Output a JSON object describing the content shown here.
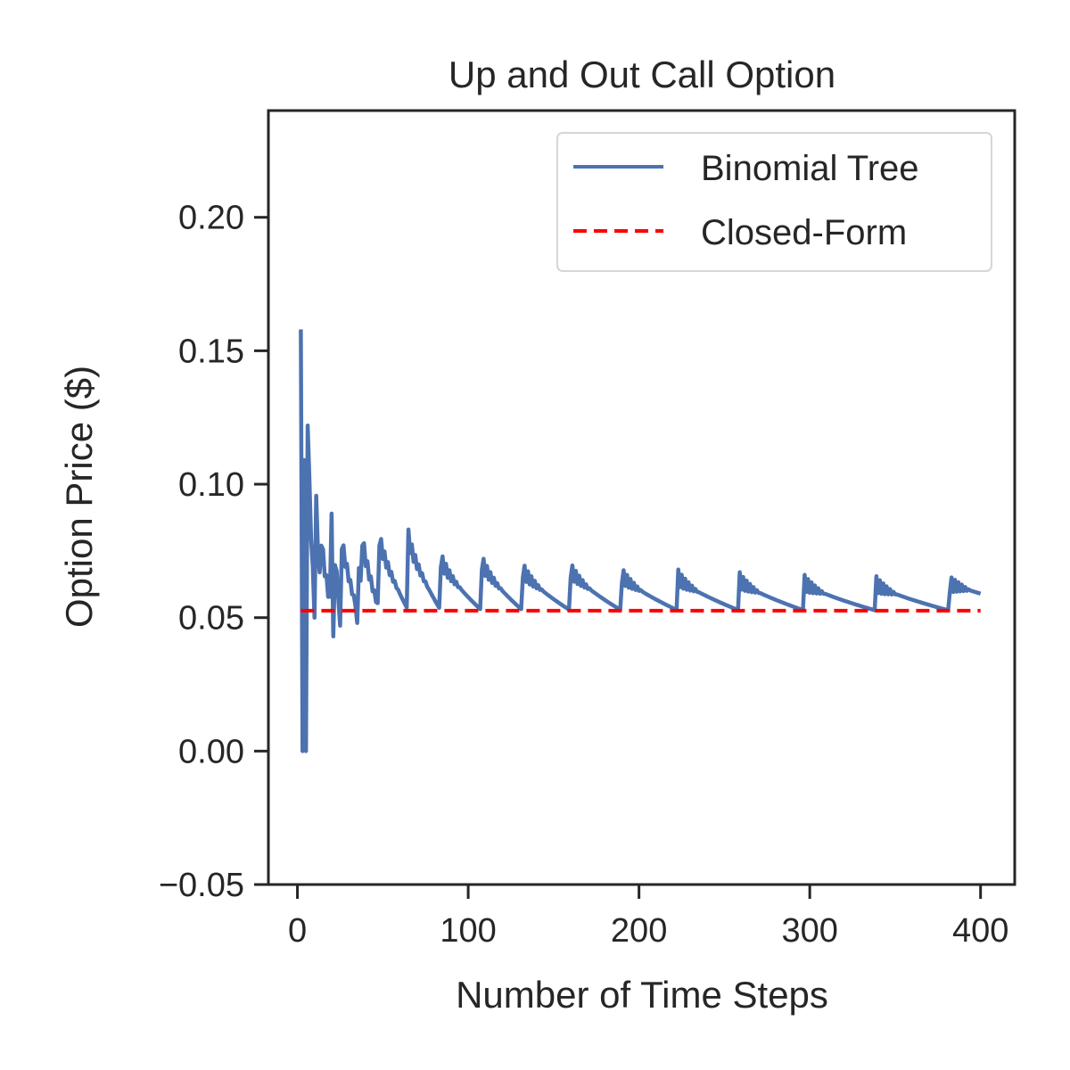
{
  "chart_data": {
    "type": "line",
    "title": "Up and Out Call Option",
    "xlabel": "Number of Time Steps",
    "ylabel": "Option Price ($)",
    "xlim": [
      -17,
      420
    ],
    "ylim": [
      -0.05,
      0.24
    ],
    "xticks": [
      0,
      100,
      200,
      300,
      400
    ],
    "xtick_labels": [
      "0",
      "100",
      "200",
      "300",
      "400"
    ],
    "yticks": [
      -0.05,
      0.0,
      0.05,
      0.1,
      0.15,
      0.2
    ],
    "ytick_labels": [
      "−0.05",
      "0.00",
      "0.05",
      "0.10",
      "0.15",
      "0.20"
    ],
    "grid": false,
    "legend_position": "top-right",
    "series": [
      {
        "name": "Binomial Tree",
        "color": "#4c72b0",
        "style": "solid",
        "reset_steps": [
          3,
          6,
          10,
          14,
          20,
          25,
          35,
          38,
          48,
          65,
          84,
          108,
          132,
          160,
          190,
          223,
          259,
          297,
          339,
          382
        ],
        "reset_peaks": [
          0.158,
          0.125,
          0.115,
          0.08,
          0.092,
          0.084,
          0.086,
          0.08,
          0.08,
          0.08,
          0.072,
          0.071,
          0.068,
          0.068,
          0.066,
          0.065,
          0.064,
          0.063,
          0.0625,
          0.0625
        ],
        "low_dips": [
          [
            3,
            0.0
          ],
          [
            5,
            0.0
          ],
          [
            21,
            0.043
          ],
          [
            35,
            0.048
          ],
          [
            25,
            0.047
          ],
          [
            10,
            0.05
          ]
        ],
        "x_start": 2,
        "x_end": 400,
        "end_value": 0.059
      },
      {
        "name": "Closed-Form",
        "color": "#ff0000",
        "style": "dashed",
        "x": [
          2,
          400
        ],
        "y": [
          0.0526,
          0.0526
        ]
      }
    ]
  }
}
